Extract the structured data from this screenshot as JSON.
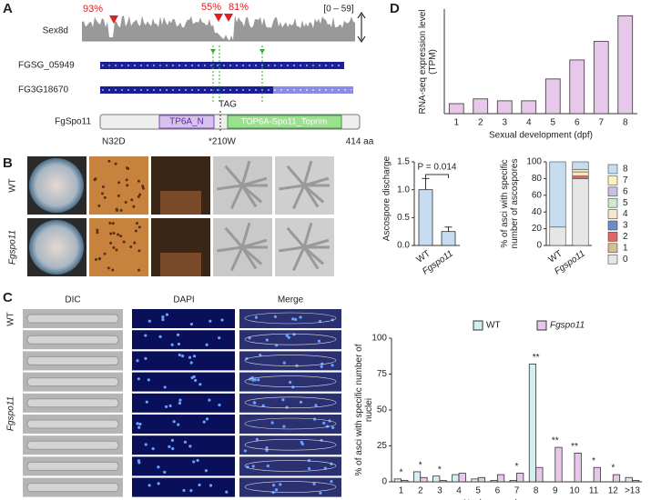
{
  "figure": {
    "panel_labels": [
      "A",
      "B",
      "C",
      "D"
    ],
    "track": {
      "name": "Sex8d",
      "range": "[0 – 59]",
      "percents": [
        "93%",
        "55%",
        "81%"
      ]
    },
    "genes": [
      "FGSG_05949",
      "FG3G18670"
    ],
    "codon": "TAG",
    "protein": {
      "name": "FgSpo11",
      "domains": [
        "TP6A_N",
        "TOP6A-Spo11_Toprim"
      ],
      "sites": [
        "N32D",
        "*210W",
        "414 aa"
      ]
    },
    "rows_b": [
      "WT",
      "Fgspo11"
    ],
    "columns_c": [
      "DIC",
      "DAPI",
      "Merge"
    ],
    "rows_c": [
      "WT",
      "Fgspo11"
    ]
  },
  "chart_data": [
    {
      "type": "bar",
      "ylabel": "RNA-seq expression level (TPM)",
      "xlabel": "Sexual development (dpf)",
      "categories": [
        "1",
        "2",
        "3",
        "4",
        "5",
        "6",
        "7",
        "8"
      ],
      "values": [
        2.1,
        3.1,
        2.7,
        2.7,
        7.3,
        11.3,
        15.2,
        20.6
      ],
      "color": "#e8c8ea",
      "ylim": [
        0,
        22
      ]
    },
    {
      "type": "bar",
      "ylabel": "Ascospore discharge",
      "categories": [
        "WT",
        "Fgspo11"
      ],
      "values": [
        1.0,
        0.25
      ],
      "errors": [
        0.2,
        0.08
      ],
      "color": "#c6dcf0",
      "ylim": [
        0,
        1.5
      ],
      "yticks": [
        {
          "value": 0,
          "label": "0.0"
        },
        0.5,
        {
          "value": 1,
          "label": "1.0"
        },
        1.5
      ],
      "annotation": "P = 0.014"
    },
    {
      "type": "stacked_bar",
      "ylabel": "% of asci with specific number of ascospores",
      "categories": [
        "WT",
        "Fgspo11"
      ],
      "ylim": [
        0,
        100
      ],
      "yticks": [
        0,
        20,
        40,
        60,
        80,
        100
      ],
      "series": [
        {
          "name": "0",
          "color": "#e6e6e6",
          "values": [
            22,
            80
          ]
        },
        {
          "name": "1",
          "color": "#d6be8c",
          "values": [
            0,
            0
          ]
        },
        {
          "name": "2",
          "color": "#e06666",
          "values": [
            0,
            3
          ]
        },
        {
          "name": "3",
          "color": "#6a8cc8",
          "values": [
            0,
            0
          ]
        },
        {
          "name": "4",
          "color": "#f5e6cc",
          "values": [
            0,
            5
          ]
        },
        {
          "name": "5",
          "color": "#cfeac6",
          "values": [
            0,
            0
          ]
        },
        {
          "name": "6",
          "color": "#c8c0e2",
          "values": [
            0,
            0
          ]
        },
        {
          "name": "7",
          "color": "#fdf2be",
          "values": [
            0,
            3
          ]
        },
        {
          "name": "8",
          "color": "#c6dcf0",
          "values": [
            78,
            9
          ]
        }
      ]
    },
    {
      "type": "bar",
      "ylabel": "% of asci with specific number of nuclei",
      "xlabel": "Nuclear number per ascus",
      "categories": [
        "1",
        "2",
        "3",
        "4",
        "5",
        "6",
        "7",
        "8",
        "9",
        "10",
        "11",
        "12",
        ">13"
      ],
      "ylim": [
        0,
        100
      ],
      "yticks": [
        0,
        25,
        50,
        75,
        100
      ],
      "series": [
        {
          "name": "WT",
          "color": "#d2eef0",
          "values": [
            2,
            7,
            4,
            5,
            2,
            1,
            1,
            82,
            0,
            0,
            0,
            0,
            3
          ]
        },
        {
          "name": "Fgspo11",
          "color": "#e8c8ea",
          "values": [
            1,
            3,
            1,
            6,
            3,
            5,
            6,
            10,
            24,
            20,
            10,
            5,
            1
          ]
        }
      ],
      "significance": [
        "*",
        "*",
        "*",
        null,
        null,
        null,
        "*",
        "**",
        "**",
        "**",
        "*",
        "*",
        null
      ]
    }
  ]
}
